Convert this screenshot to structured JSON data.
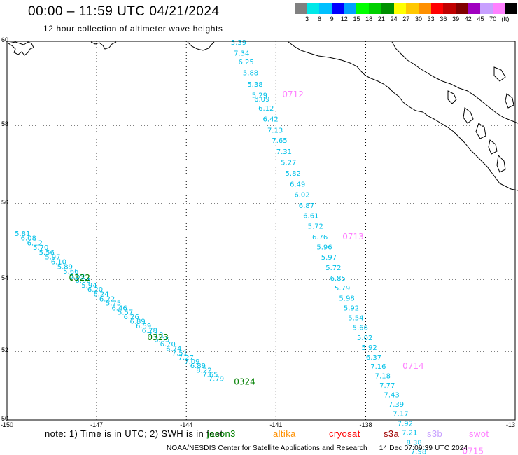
{
  "header": {
    "title": "00:00  –  11:59 UTC 04/21/2024",
    "subtitle": "12 hour collection of altimeter wave heights"
  },
  "legend": {
    "colors": [
      "#808080",
      "#00e8e8",
      "#00c0ff",
      "#0000ff",
      "#00a0ff",
      "#00ff00",
      "#00d000",
      "#009000",
      "#ffff00",
      "#ffc800",
      "#ff9000",
      "#ff0000",
      "#c00000",
      "#800000",
      "#a000c0",
      "#c8a0ff",
      "#ff80ff",
      "#000000"
    ],
    "labels": [
      "3",
      "6",
      "9",
      "12",
      "15",
      "18",
      "21",
      "24",
      "27",
      "30",
      "33",
      "36",
      "39",
      "42",
      "45",
      "70",
      "(ft)"
    ]
  },
  "axes": {
    "lat_labels": [
      "60",
      "58",
      "56",
      "54",
      "52",
      "50"
    ],
    "lon_labels": [
      "-150",
      "-147",
      "-144",
      "-141",
      "-138",
      "-13"
    ]
  },
  "tracks": [
    {
      "satellite": "jason3",
      "color": "#00c0e8",
      "points": [
        {
          "lon": -149.48,
          "lat": 55.15,
          "v": "5.81"
        },
        {
          "lon": -149.28,
          "lat": 55.03,
          "v": "6.08"
        },
        {
          "lon": -149.07,
          "lat": 54.9,
          "v": "6.12"
        },
        {
          "lon": -148.87,
          "lat": 54.78,
          "v": "5.70"
        },
        {
          "lon": -148.67,
          "lat": 54.65,
          "v": "5.56"
        },
        {
          "lon": -148.47,
          "lat": 54.53,
          "v": "5.97"
        },
        {
          "lon": -148.27,
          "lat": 54.4,
          "v": "6.10"
        },
        {
          "lon": -148.06,
          "lat": 54.27,
          "v": "5.89"
        },
        {
          "lon": -147.86,
          "lat": 54.15,
          "v": "5.66"
        },
        {
          "lon": -147.66,
          "lat": 54.02,
          "v": "5.59"
        },
        {
          "lon": -147.46,
          "lat": 53.9,
          "v": "6.06"
        },
        {
          "lon": -147.25,
          "lat": 53.77,
          "v": "5.94"
        },
        {
          "lon": -147.05,
          "lat": 53.65,
          "v": "6.20"
        },
        {
          "lon": -146.85,
          "lat": 53.52,
          "v": "6.24"
        },
        {
          "lon": -146.65,
          "lat": 53.39,
          "v": "6.22"
        },
        {
          "lon": -146.44,
          "lat": 53.27,
          "v": "5.75"
        },
        {
          "lon": -146.24,
          "lat": 53.14,
          "v": "6.46"
        },
        {
          "lon": -146.04,
          "lat": 53.02,
          "v": "5.57"
        },
        {
          "lon": -145.84,
          "lat": 52.89,
          "v": "6.26"
        },
        {
          "lon": -145.63,
          "lat": 52.77,
          "v": "6.89"
        },
        {
          "lon": -145.43,
          "lat": 52.64,
          "v": "6.59"
        },
        {
          "lon": -145.23,
          "lat": 52.51,
          "v": "6.78"
        },
        {
          "lon": -145.03,
          "lat": 52.39,
          "v": "7.18"
        },
        {
          "lon": -144.82,
          "lat": 52.26,
          "v": "6.35"
        },
        {
          "lon": -144.62,
          "lat": 52.14,
          "v": "6.70"
        },
        {
          "lon": -144.42,
          "lat": 52.01,
          "v": "6.74"
        },
        {
          "lon": -144.22,
          "lat": 51.89,
          "v": "7.51"
        },
        {
          "lon": -144.01,
          "lat": 51.76,
          "v": "7.27"
        },
        {
          "lon": -143.81,
          "lat": 51.63,
          "v": "7.09"
        },
        {
          "lon": -143.61,
          "lat": 51.51,
          "v": "6.89"
        },
        {
          "lon": -143.41,
          "lat": 51.38,
          "v": "8.22"
        },
        {
          "lon": -143.2,
          "lat": 51.26,
          "v": "7.65"
        },
        {
          "lon": -143.0,
          "lat": 51.13,
          "v": "7.79"
        }
      ],
      "time_labels": [
        {
          "lon": -147.57,
          "lat": 53.96,
          "t": "0322"
        },
        {
          "lon": -144.95,
          "lat": 52.31,
          "t": "0323"
        },
        {
          "lon": -142.05,
          "lat": 51.03,
          "t": "0324"
        }
      ]
    },
    {
      "satellite": "swot",
      "color": "#00c0e8",
      "points": [
        {
          "lon": -142.25,
          "lat": 59.92,
          "v": "5.39"
        },
        {
          "lon": -142.15,
          "lat": 59.66,
          "v": "7.34"
        },
        {
          "lon": -142.0,
          "lat": 59.45,
          "v": "6.25"
        },
        {
          "lon": -141.85,
          "lat": 59.19,
          "v": "5.88"
        },
        {
          "lon": -141.7,
          "lat": 58.92,
          "v": "5.38"
        },
        {
          "lon": -141.55,
          "lat": 58.66,
          "v": "5.29"
        },
        {
          "lon": -141.47,
          "lat": 58.57,
          "v": "6.09"
        },
        {
          "lon": -141.33,
          "lat": 58.35,
          "v": "6.12"
        },
        {
          "lon": -141.18,
          "lat": 58.09,
          "v": "6.42"
        },
        {
          "lon": -141.03,
          "lat": 57.81,
          "v": "7.13"
        },
        {
          "lon": -140.88,
          "lat": 57.55,
          "v": "7.65"
        },
        {
          "lon": -140.73,
          "lat": 57.27,
          "v": "7.31"
        },
        {
          "lon": -140.58,
          "lat": 56.99,
          "v": "5.27"
        },
        {
          "lon": -140.43,
          "lat": 56.71,
          "v": "5.82"
        },
        {
          "lon": -140.28,
          "lat": 56.44,
          "v": "6.49"
        },
        {
          "lon": -140.13,
          "lat": 56.17,
          "v": "6.02"
        },
        {
          "lon": -139.98,
          "lat": 55.89,
          "v": "6.87"
        },
        {
          "lon": -139.83,
          "lat": 55.62,
          "v": "6.61"
        },
        {
          "lon": -139.68,
          "lat": 55.34,
          "v": "5.72"
        },
        {
          "lon": -139.53,
          "lat": 55.06,
          "v": "6.76"
        },
        {
          "lon": -139.38,
          "lat": 54.79,
          "v": "5.96"
        },
        {
          "lon": -139.23,
          "lat": 54.52,
          "v": "5.97"
        },
        {
          "lon": -139.08,
          "lat": 54.24,
          "v": "5.72"
        },
        {
          "lon": -138.93,
          "lat": 53.96,
          "v": "6.85"
        },
        {
          "lon": -138.78,
          "lat": 53.69,
          "v": "5.79"
        },
        {
          "lon": -138.63,
          "lat": 53.41,
          "v": "5.98"
        },
        {
          "lon": -138.48,
          "lat": 53.14,
          "v": "5.92"
        },
        {
          "lon": -138.33,
          "lat": 52.86,
          "v": "5.54"
        },
        {
          "lon": -138.18,
          "lat": 52.59,
          "v": "5.66"
        },
        {
          "lon": -138.03,
          "lat": 52.31,
          "v": "5.02"
        },
        {
          "lon": -137.88,
          "lat": 52.04,
          "v": "5.92"
        },
        {
          "lon": -137.73,
          "lat": 51.76,
          "v": "6.37"
        },
        {
          "lon": -137.58,
          "lat": 51.49,
          "v": "7.16"
        },
        {
          "lon": -137.43,
          "lat": 51.21,
          "v": "7.18"
        },
        {
          "lon": -137.28,
          "lat": 50.94,
          "v": "7.77"
        },
        {
          "lon": -137.13,
          "lat": 50.66,
          "v": "7.43"
        },
        {
          "lon": -136.98,
          "lat": 50.39,
          "v": "7.39"
        },
        {
          "lon": -136.83,
          "lat": 50.11,
          "v": "7.17"
        },
        {
          "lon": -136.68,
          "lat": 49.83,
          "v": "7.92"
        },
        {
          "lon": -136.53,
          "lat": 49.56,
          "v": "7.21"
        },
        {
          "lon": -136.38,
          "lat": 49.28,
          "v": "8.38"
        },
        {
          "lon": -136.23,
          "lat": 49.01,
          "v": "7.98"
        }
      ],
      "time_labels": [
        {
          "lon": -140.43,
          "lat": 58.67,
          "t": "0712"
        },
        {
          "lon": -138.42,
          "lat": 55.06,
          "t": "0713"
        },
        {
          "lon": -136.41,
          "lat": 51.49,
          "t": "0714"
        },
        {
          "lon": -134.41,
          "lat": 49.01,
          "t": "0715"
        }
      ]
    }
  ],
  "notes": "note:  1) Time is in UTC;  2) SWH is in feet",
  "satellites": [
    {
      "name": "jason3",
      "color": "#008000"
    },
    {
      "name": "altika",
      "color": "#ff9000"
    },
    {
      "name": "cryosat",
      "color": "#ff0000"
    },
    {
      "name": "s3a",
      "color": "#a00000"
    },
    {
      "name": "s3b",
      "color": "#c8a0ff"
    },
    {
      "name": "swot",
      "color": "#ff80ff"
    }
  ],
  "footer": {
    "credit": "NOAA/NESDIS Center for Satellite Applications and Research",
    "timestamp": "14 Dec 07:09:39 UTC 2024"
  }
}
